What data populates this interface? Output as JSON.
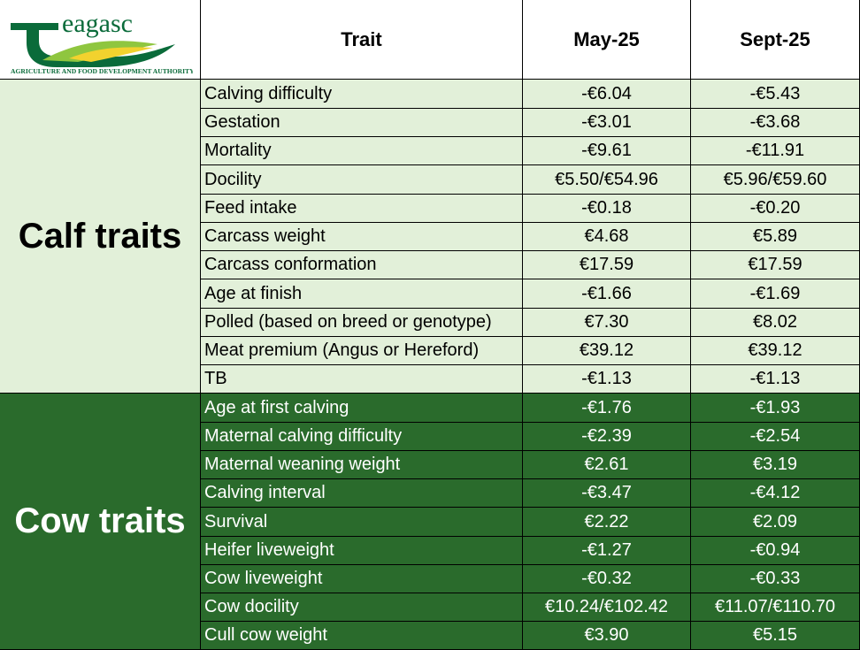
{
  "logo": {
    "brand": "teagasc",
    "tagline": "Agriculture and Food Development Authority"
  },
  "header": {
    "trait": "Trait",
    "col1": "May-25",
    "col2": "Sept-25"
  },
  "groups": {
    "calf": "Calf traits",
    "cow": "Cow traits"
  },
  "calf_rows": [
    {
      "trait": "Calving difficulty",
      "may": "-€6.04",
      "sept": "-€5.43"
    },
    {
      "trait": "Gestation",
      "may": "-€3.01",
      "sept": "-€3.68"
    },
    {
      "trait": "Mortality",
      "may": "-€9.61",
      "sept": "-€11.91"
    },
    {
      "trait": "Docility",
      "may": "€5.50/€54.96",
      "sept": "€5.96/€59.60"
    },
    {
      "trait": "Feed intake",
      "may": "-€0.18",
      "sept": "-€0.20"
    },
    {
      "trait": "Carcass weight",
      "may": "€4.68",
      "sept": "€5.89"
    },
    {
      "trait": "Carcass conformation",
      "may": "€17.59",
      "sept": "€17.59"
    },
    {
      "trait": "Age at finish",
      "may": "-€1.66",
      "sept": "-€1.69"
    },
    {
      "trait": "Polled (based on breed or genotype)",
      "may": "€7.30",
      "sept": "€8.02"
    },
    {
      "trait": "Meat premium (Angus or Hereford)",
      "may": "€39.12",
      "sept": "€39.12"
    },
    {
      "trait": "TB",
      "may": "-€1.13",
      "sept": "-€1.13"
    }
  ],
  "cow_rows": [
    {
      "trait": "Age at first calving",
      "may": "-€1.76",
      "sept": "-€1.93"
    },
    {
      "trait": "Maternal calving difficulty",
      "may": "-€2.39",
      "sept": "-€2.54"
    },
    {
      "trait": "Maternal weaning weight",
      "may": "€2.61",
      "sept": "€3.19"
    },
    {
      "trait": "Calving interval",
      "may": "-€3.47",
      "sept": "-€4.12"
    },
    {
      "trait": "Survival",
      "may": "€2.22",
      "sept": "€2.09"
    },
    {
      "trait": "Heifer liveweight",
      "may": "-€1.27",
      "sept": "-€0.94"
    },
    {
      "trait": "Cow liveweight",
      "may": "-€0.32",
      "sept": "-€0.33"
    },
    {
      "trait": "Cow docility",
      "may": "€10.24/€102.42",
      "sept": "€11.07/€110.70"
    },
    {
      "trait": "Cull cow weight",
      "may": "€3.90",
      "sept": "€5.15"
    }
  ],
  "colors": {
    "calf_bg": "#e2f0d9",
    "cow_bg": "#2a6b2c",
    "logo_green": "#0a6b3a",
    "logo_lime": "#8fc63f",
    "logo_yellow": "#f2d22e"
  }
}
